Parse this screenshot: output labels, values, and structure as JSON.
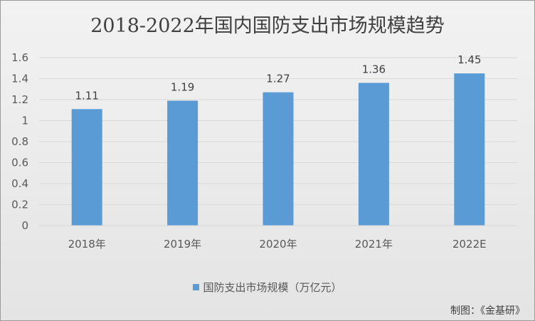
{
  "chart_data": {
    "type": "bar",
    "title": "2018-2022年国内国防支出市场规模趋势",
    "categories": [
      "2018年",
      "2019年",
      "2020年",
      "2021年",
      "2022E"
    ],
    "series": [
      {
        "name": "国防支出市场规模（万亿元）",
        "values": [
          1.11,
          1.19,
          1.27,
          1.36,
          1.45
        ]
      }
    ],
    "data_labels": [
      "1.11",
      "1.19",
      "1.27",
      "1.36",
      "1.45"
    ],
    "y_ticks": [
      "0",
      "0.2",
      "0.4",
      "0.6",
      "0.8",
      "1",
      "1.2",
      "1.4",
      "1.6"
    ],
    "ylim": [
      0,
      1.6
    ],
    "grid": true,
    "legend_position": "bottom",
    "bar_color": "#5b9bd5",
    "grid_color": "#d9d9d9"
  },
  "source_note": "制图：《金基研》"
}
